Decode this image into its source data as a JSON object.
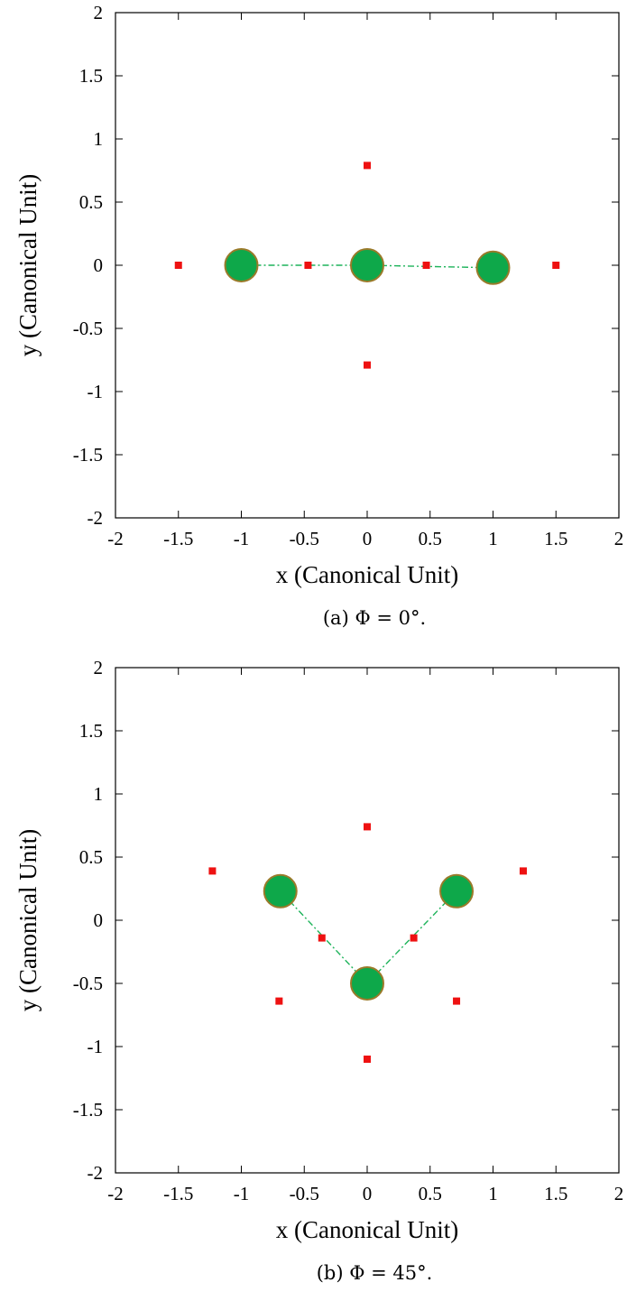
{
  "chart_data": [
    {
      "type": "scatter",
      "caption": "(a) Φ = 0°.",
      "xlabel": "x (Canonical Unit)",
      "ylabel": "y (Canonical Unit)",
      "xlim": [
        -2,
        2
      ],
      "ylim": [
        -2,
        2
      ],
      "xticks": [
        "-2",
        "-1.5",
        "-1",
        "-0.5",
        "0",
        "0.5",
        "1",
        "1.5",
        "2"
      ],
      "yticks": [
        "-2",
        "-1.5",
        "-1",
        "-0.5",
        "0",
        "0.5",
        "1",
        "1.5",
        "2"
      ],
      "grid": false,
      "primaries": [
        {
          "x": -1.0,
          "y": 0.0
        },
        {
          "x": 0.0,
          "y": 0.0
        },
        {
          "x": 1.0,
          "y": -0.02
        }
      ],
      "connections": [
        [
          0,
          1
        ],
        [
          1,
          2
        ]
      ],
      "equilibrium_points": [
        {
          "x": -1.5,
          "y": 0.0
        },
        {
          "x": -0.47,
          "y": 0.0
        },
        {
          "x": 0.47,
          "y": 0.0
        },
        {
          "x": 1.5,
          "y": 0.0
        },
        {
          "x": 0.0,
          "y": 0.79
        },
        {
          "x": 0.0,
          "y": -0.79
        }
      ],
      "colors": {
        "primary_fill": "#0ea84a",
        "primary_edge": "#9a7a2a",
        "point": "#ee1111",
        "link": "#1db35a"
      }
    },
    {
      "type": "scatter",
      "caption": "(b) Φ = 45°.",
      "xlabel": "x (Canonical Unit)",
      "ylabel": "y (Canonical Unit)",
      "xlim": [
        -2,
        2
      ],
      "ylim": [
        -2,
        2
      ],
      "xticks": [
        "-2",
        "-1.5",
        "-1",
        "-0.5",
        "0",
        "0.5",
        "1",
        "1.5",
        "2"
      ],
      "yticks": [
        "-2",
        "-1.5",
        "-1",
        "-0.5",
        "0",
        "0.5",
        "1",
        "1.5",
        "2"
      ],
      "grid": false,
      "primaries": [
        {
          "x": -0.69,
          "y": 0.23
        },
        {
          "x": 0.0,
          "y": -0.5
        },
        {
          "x": 0.71,
          "y": 0.23
        }
      ],
      "connections": [
        [
          0,
          1
        ],
        [
          1,
          2
        ]
      ],
      "equilibrium_points": [
        {
          "x": 0.0,
          "y": 0.74
        },
        {
          "x": -1.23,
          "y": 0.39
        },
        {
          "x": 1.24,
          "y": 0.39
        },
        {
          "x": -0.36,
          "y": -0.14
        },
        {
          "x": 0.37,
          "y": -0.14
        },
        {
          "x": -0.7,
          "y": -0.64
        },
        {
          "x": 0.71,
          "y": -0.64
        },
        {
          "x": 0.0,
          "y": -1.1
        }
      ],
      "colors": {
        "primary_fill": "#0ea84a",
        "primary_edge": "#9a7a2a",
        "point": "#ee1111",
        "link": "#1db35a"
      }
    }
  ]
}
